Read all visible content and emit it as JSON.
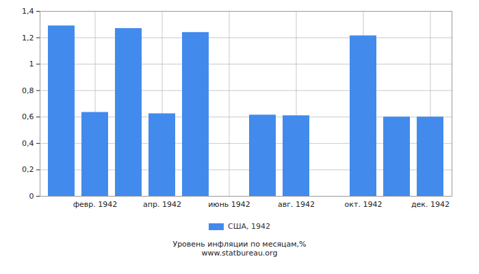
{
  "chart_data": {
    "type": "bar",
    "title": "Уровень инфляции по месяцам,%",
    "subtitle": "www.statbureau.org",
    "categories": [
      null,
      "февр. 1942",
      null,
      "апр. 1942",
      null,
      "июнь 1942",
      null,
      "авг. 1942",
      null,
      "окт. 1942",
      null,
      "дек. 1942"
    ],
    "series": [
      {
        "name": "США, 1942",
        "color": "#428bed",
        "values": [
          1.29,
          0.635,
          1.27,
          0.625,
          1.24,
          0,
          0.615,
          0.61,
          0,
          1.215,
          0.6,
          0.6
        ]
      }
    ],
    "ylim": [
      0,
      1.4
    ],
    "yticks": [
      0,
      {
        "value": 0.2,
        "label": "0,2"
      },
      {
        "value": 0.4,
        "label": "0,4"
      },
      {
        "value": 0.6,
        "label": "0,6"
      },
      {
        "value": 0.8,
        "label": "0,8"
      },
      1,
      {
        "value": 1.2,
        "label": "1,2"
      },
      {
        "value": 1.4,
        "label": "1,4"
      }
    ],
    "grid": true,
    "legend": "bottom"
  }
}
